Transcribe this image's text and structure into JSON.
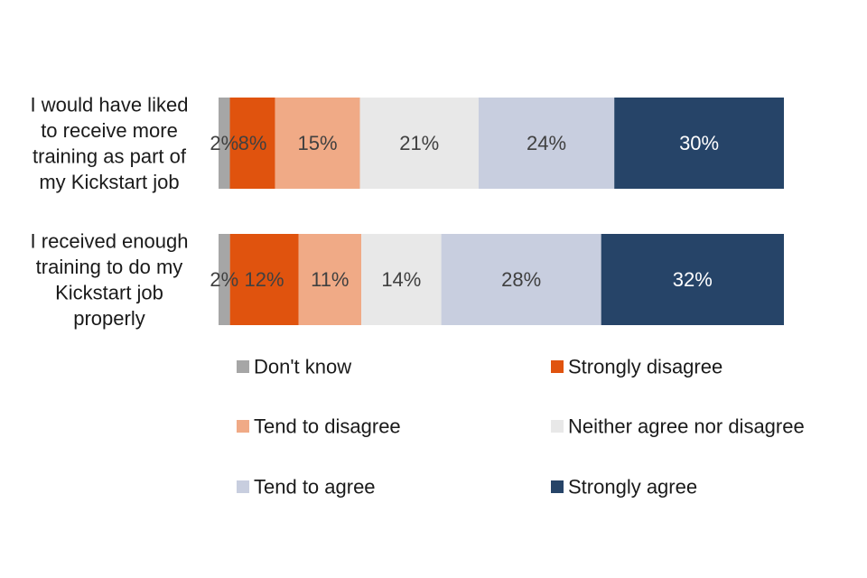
{
  "chart_data": {
    "type": "bar",
    "orientation": "horizontal",
    "stacked": true,
    "percent": true,
    "categories": [
      "I would have liked to receive more training as part of my Kickstart job",
      "I received enough training to do my Kickstart job properly"
    ],
    "category_lines": [
      [
        "I would have liked",
        "to receive more",
        "training as part of",
        "my Kickstart job"
      ],
      [
        "I received enough",
        "training to do my",
        "Kickstart job",
        "properly"
      ]
    ],
    "series": [
      {
        "name": "Don't know",
        "values": [
          2,
          2
        ],
        "labels": [
          "2%",
          "2%"
        ],
        "color": "#a6a6a6",
        "label_color": "#404040"
      },
      {
        "name": "Strongly disagree",
        "values": [
          8,
          12
        ],
        "labels": [
          "8%",
          "12%"
        ],
        "color": "#e0530e",
        "label_color": "#404040"
      },
      {
        "name": "Tend to disagree",
        "values": [
          15,
          11
        ],
        "labels": [
          "15%",
          "11%"
        ],
        "color": "#f0aa86",
        "label_color": "#404040"
      },
      {
        "name": "Neither agree nor disagree",
        "values": [
          21,
          14
        ],
        "labels": [
          "21%",
          "14%"
        ],
        "color": "#e8e8e8",
        "label_color": "#404040"
      },
      {
        "name": "Tend to agree",
        "values": [
          24,
          28
        ],
        "labels": [
          "24%",
          "28%"
        ],
        "color": "#c8cedf",
        "label_color": "#404040"
      },
      {
        "name": "Strongly agree",
        "values": [
          30,
          32
        ],
        "labels": [
          "30%",
          "32%"
        ],
        "color": "#264468",
        "label_color": "#ffffff"
      }
    ],
    "xlim": [
      0,
      100
    ],
    "grid": false,
    "legend_position": "bottom",
    "legend_columns": 2
  }
}
